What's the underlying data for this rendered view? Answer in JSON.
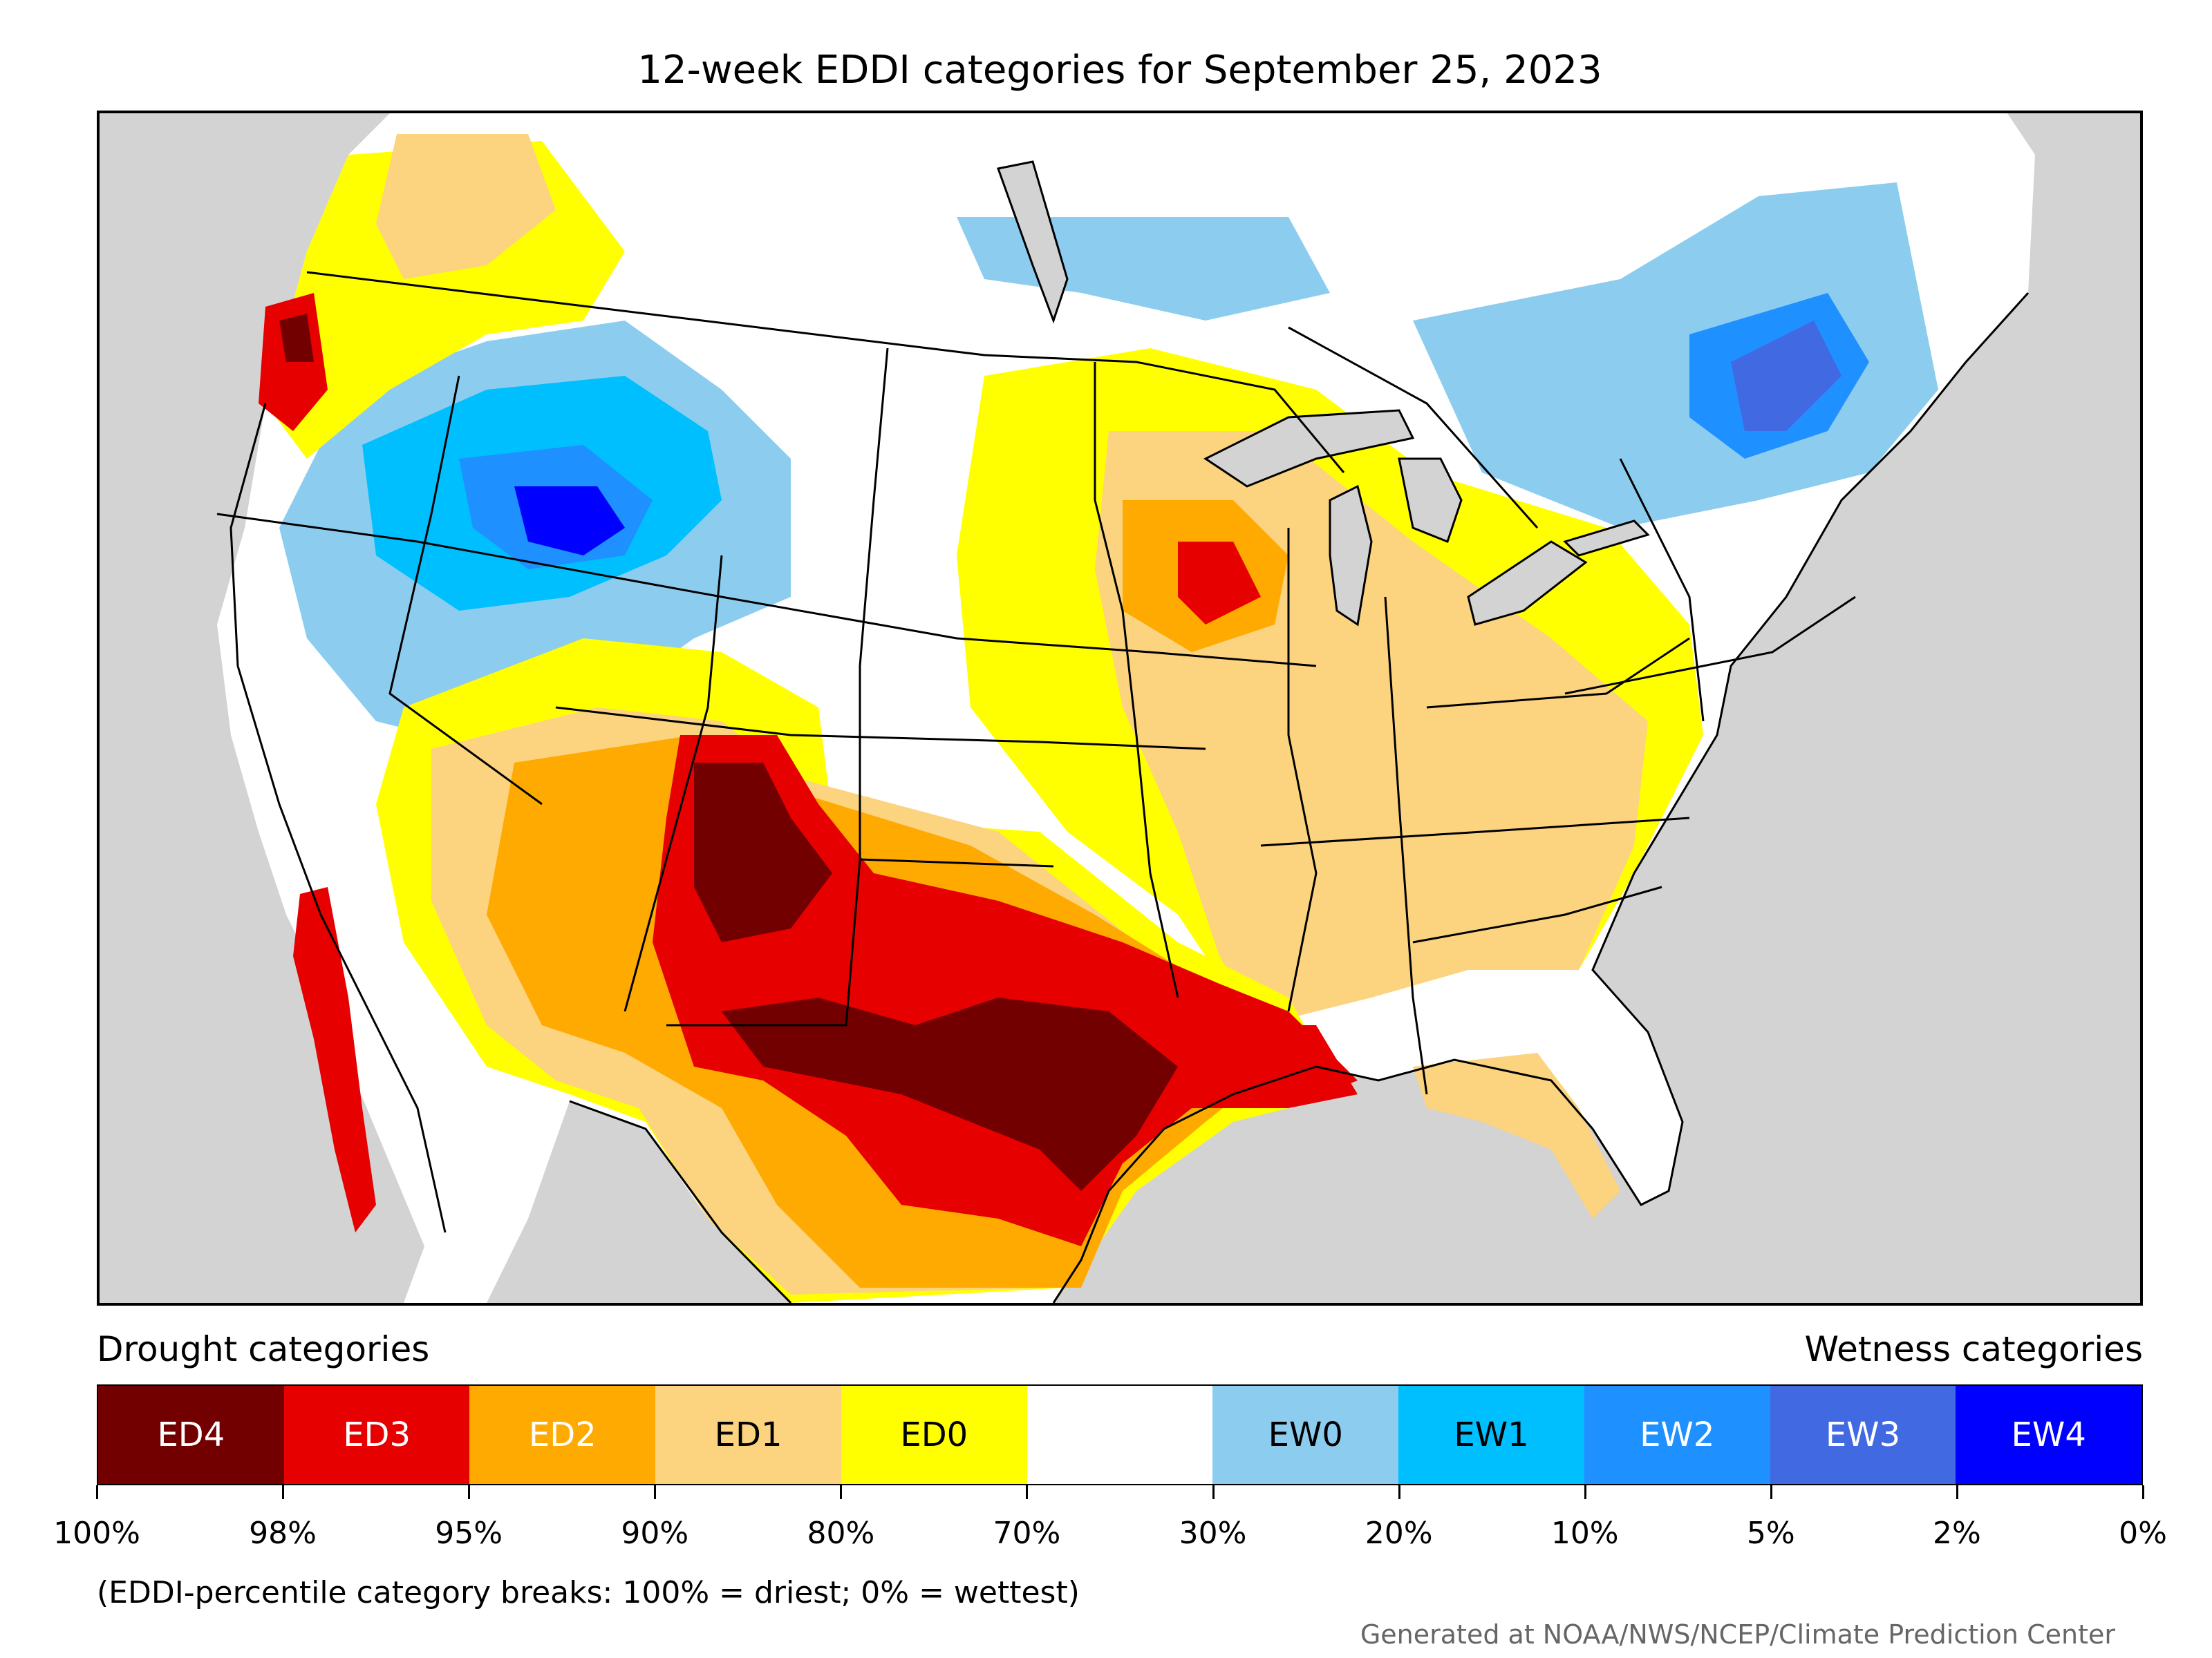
{
  "title": "12-week EDDI categories for September 25, 2023",
  "legend": {
    "drought_heading": "Drought categories",
    "wetness_heading": "Wetness categories",
    "categories": [
      {
        "label": "ED4",
        "color": "#730000",
        "text_color": "#ffffff"
      },
      {
        "label": "ED3",
        "color": "#e60000",
        "text_color": "#ffffff"
      },
      {
        "label": "ED2",
        "color": "#ffaa00",
        "text_color": "#ffffff"
      },
      {
        "label": "ED1",
        "color": "#fcd37f",
        "text_color": "#000000"
      },
      {
        "label": "ED0",
        "color": "#ffff00",
        "text_color": "#000000"
      },
      {
        "label": "",
        "color": "#ffffff",
        "text_color": "#000000"
      },
      {
        "label": "EW0",
        "color": "#8ccdef",
        "text_color": "#000000"
      },
      {
        "label": "EW1",
        "color": "#00bfff",
        "text_color": "#000000"
      },
      {
        "label": "EW2",
        "color": "#1e90ff",
        "text_color": "#ffffff"
      },
      {
        "label": "EW3",
        "color": "#4169e1",
        "text_color": "#ffffff"
      },
      {
        "label": "EW4",
        "color": "#0000ff",
        "text_color": "#ffffff"
      }
    ],
    "ticks": [
      "100%",
      "98%",
      "95%",
      "90%",
      "80%",
      "70%",
      "30%",
      "20%",
      "10%",
      "5%",
      "2%",
      "0%"
    ]
  },
  "footnote": "(EDDI-percentile category breaks: 100% = driest; 0% = wettest)",
  "credit": "Generated at NOAA/NWS/NCEP/Climate Prediction Center",
  "map": {
    "ocean_color": "#d3d3d3",
    "lake_color": "#d3d3d3",
    "regions": [
      {
        "name": "southwest-texas-drought-ed4",
        "category": "ED4"
      },
      {
        "name": "south-plains-drought-ed3",
        "category": "ED3"
      },
      {
        "name": "southwest-drought-ed2",
        "category": "ED2"
      },
      {
        "name": "midwest-drought-ed1",
        "category": "ED1"
      },
      {
        "name": "great-basin-wetness-ew1",
        "category": "EW1"
      },
      {
        "name": "new-england-wetness-ew3",
        "category": "EW3"
      }
    ]
  }
}
